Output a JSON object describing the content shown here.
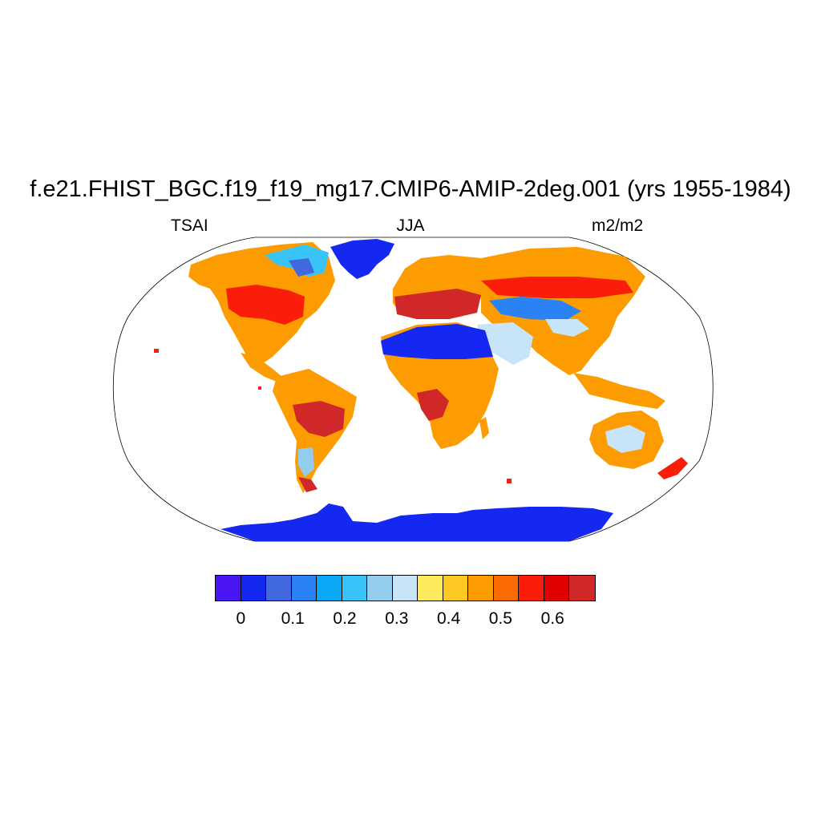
{
  "title": "f.e21.FHIST_BGC.f19_f19_mg17.CMIP6-AMIP-2deg.001 (yrs 1955-1984)",
  "variable": "TSAI",
  "season": "JJA",
  "units": "m2/m2",
  "colorbar": {
    "colors": [
      "#4a16f2",
      "#1428f2",
      "#4268e0",
      "#2a82f5",
      "#0aa8f5",
      "#38c4f8",
      "#93cdee",
      "#c7e4f8",
      "#fde95c",
      "#fdc821",
      "#fc9c00",
      "#fb6a00",
      "#fa1e0a",
      "#e00000",
      "#d02828"
    ],
    "labels": [
      "0",
      "0.1",
      "0.2",
      "0.3",
      "0.4",
      "0.5",
      "0.6"
    ]
  },
  "map": {
    "projection": "robinson",
    "land_color_default": "#fc9c00"
  }
}
